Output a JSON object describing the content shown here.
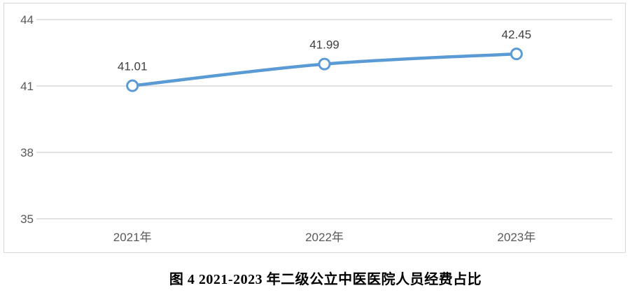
{
  "chart_data": {
    "type": "line",
    "title": "图 4 2021-2023 年二级公立中医医院人员经费占比",
    "categories": [
      "2021年",
      "2022年",
      "2023年"
    ],
    "values": [
      41.01,
      41.99,
      42.45
    ],
    "data_labels": [
      "41.01",
      "41.99",
      "42.45"
    ],
    "y_ticks": [
      44,
      41,
      38,
      35
    ],
    "ylim": [
      35,
      44
    ],
    "xlabel": "",
    "ylabel": "",
    "grid": true,
    "legend": "none",
    "smooth_line": true,
    "line_color": "#5B9BD5",
    "marker_fill": "#ffffff",
    "marker_stroke": "#5B9BD5",
    "gridline_color": "#D9D9D9",
    "frame_color": "#D7D7D7",
    "axis_label_color": "#595959",
    "data_label_color": "#404040"
  }
}
